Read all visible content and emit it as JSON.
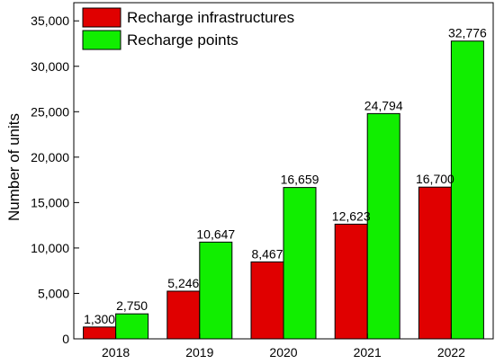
{
  "chart_data": {
    "type": "bar",
    "title": "",
    "xlabel": "",
    "ylabel": "Number of units",
    "categories": [
      "2018",
      "2019",
      "2020",
      "2021",
      "2022"
    ],
    "series": [
      {
        "name": "Recharge infrastructures",
        "color": "#e00000",
        "values": [
          1300,
          5246,
          8467,
          12623,
          16700
        ],
        "labels": [
          "1,300",
          "5,246",
          "8,467",
          "12,623",
          "16,700"
        ]
      },
      {
        "name": "Recharge points",
        "color": "#11ee00",
        "values": [
          2750,
          10647,
          16659,
          24794,
          32776
        ],
        "labels": [
          "2,750",
          "10,647",
          "16,659",
          "24,794",
          "32,776"
        ]
      }
    ],
    "ylim": [
      0,
      37000
    ],
    "yticks": [
      0,
      5000,
      10000,
      15000,
      20000,
      25000,
      30000,
      35000
    ],
    "ytick_labels": [
      "0",
      "5,000",
      "10,000",
      "15,000",
      "20,000",
      "25,000",
      "30,000",
      "35,000"
    ],
    "grid": false,
    "legend_position": "top-left"
  }
}
